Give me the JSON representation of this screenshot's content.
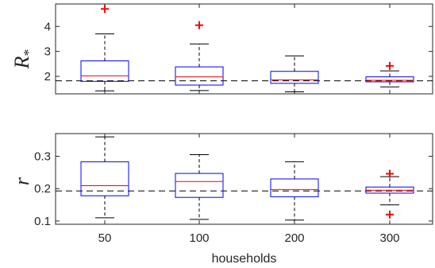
{
  "chart_data": [
    {
      "type": "boxplot",
      "ylabel": "R",
      "ylabel_subscript": "*",
      "categories": [
        "50",
        "100",
        "200",
        "300"
      ],
      "ylim": [
        1.3,
        4.9
      ],
      "yticks": [
        "2",
        "3",
        "4"
      ],
      "reference_line": 1.82,
      "boxes": [
        {
          "category": "50",
          "whisker_low": 1.42,
          "q1": 1.8,
          "median": 2.02,
          "q3": 2.62,
          "whisker_high": 3.7,
          "outliers": [
            4.7
          ]
        },
        {
          "category": "100",
          "whisker_low": 1.43,
          "q1": 1.65,
          "median": 1.98,
          "q3": 2.38,
          "whisker_high": 3.3,
          "outliers": [
            4.05
          ]
        },
        {
          "category": "200",
          "whisker_low": 1.38,
          "q1": 1.72,
          "median": 1.86,
          "q3": 2.2,
          "whisker_high": 2.82,
          "outliers": []
        },
        {
          "category": "300",
          "whisker_low": 1.58,
          "q1": 1.78,
          "median": 1.84,
          "q3": 1.98,
          "whisker_high": 2.22,
          "outliers": [
            2.42
          ]
        }
      ],
      "colors": {
        "box": "#0000ff",
        "median": "#ff0000",
        "outlier": "#ff0000",
        "whisker": "#000000"
      }
    },
    {
      "type": "boxplot",
      "ylabel": "r",
      "xlabel": "households",
      "categories": [
        "50",
        "100",
        "200",
        "300"
      ],
      "ylim": [
        0.09,
        0.37
      ],
      "yticks": [
        "0.1",
        "0.2",
        "0.3"
      ],
      "reference_line": 0.193,
      "boxes": [
        {
          "category": "50",
          "whisker_low": 0.11,
          "q1": 0.178,
          "median": 0.209,
          "q3": 0.283,
          "whisker_high": 0.36,
          "outliers": []
        },
        {
          "category": "100",
          "whisker_low": 0.105,
          "q1": 0.173,
          "median": 0.222,
          "q3": 0.247,
          "whisker_high": 0.305,
          "outliers": []
        },
        {
          "category": "200",
          "whisker_low": 0.103,
          "q1": 0.175,
          "median": 0.197,
          "q3": 0.23,
          "whisker_high": 0.283,
          "outliers": []
        },
        {
          "category": "300",
          "whisker_low": 0.15,
          "q1": 0.186,
          "median": 0.195,
          "q3": 0.205,
          "whisker_high": 0.237,
          "outliers": [
            0.246,
            0.12
          ]
        }
      ],
      "colors": {
        "box": "#0000ff",
        "median": "#ff0000",
        "outlier": "#ff0000",
        "whisker": "#000000"
      }
    }
  ]
}
